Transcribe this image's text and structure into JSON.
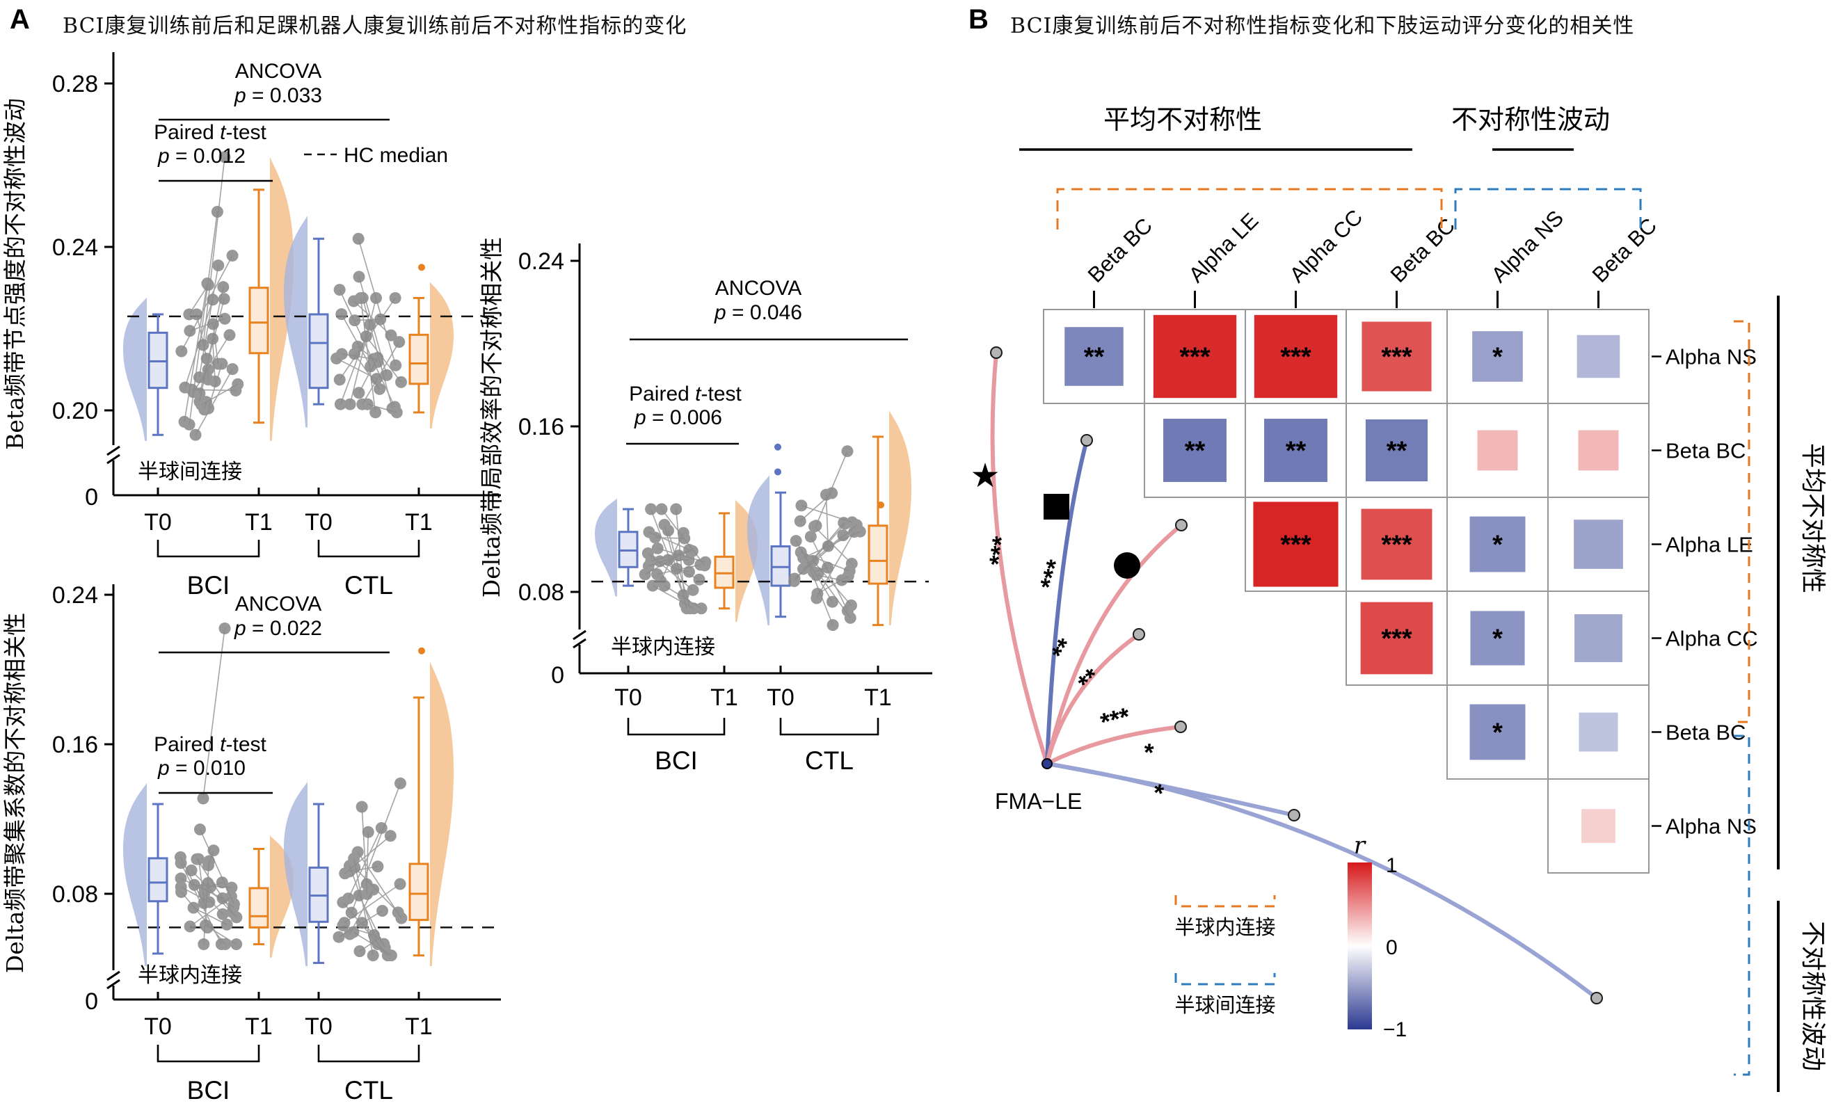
{
  "panels": {
    "a": {
      "tag": "A",
      "title": "BCI康复训练前后和足踝机器人康复训练前后不对称性指标的变化"
    },
    "b": {
      "tag": "B",
      "title": "BCI康复训练前后不对称性指标变化和下肢运动评分变化的相关性"
    }
  },
  "colors": {
    "series": {
      "blue": {
        "main": "#5b74c4",
        "fill": "#e2e6f5",
        "violin": "#a9b6de"
      },
      "orange": {
        "main": "#e8821f",
        "fill": "#fcead8",
        "violin": "#f3bd85"
      }
    },
    "dot": "#8a8a8a",
    "pair_line": "#9a9a9a",
    "intra_bracket": "#e87820",
    "inter_bracket": "#2f7bbf",
    "corr_positive": "#d61c1c",
    "corr_negative": "#29388f",
    "muted_label": "#7f7f7f"
  },
  "chart_data": [
    {
      "id": "beta_ns_fluct",
      "type": "raincloud",
      "ylabel": "Beta频带节点强度的不对称性波动",
      "region_label": "半球间连接",
      "y_ticks": [
        {
          "v": 0.2,
          "label": "0.20"
        },
        {
          "v": 0.24,
          "label": "0.24"
        },
        {
          "v": 0.28,
          "label": "0.28"
        }
      ],
      "zero_label": "0",
      "hc_median": 0.223,
      "legend": {
        "label": "HC median"
      },
      "stats": {
        "ancova": "ANCOVA",
        "ancova_p": "0.033",
        "paired": "Paired t-test",
        "paired_p": "0.012"
      },
      "x_tick_labels": [
        "T0",
        "T1",
        "T0",
        "T1"
      ],
      "group_brackets": [
        "BCI",
        "CTL"
      ],
      "n_pairs": 19,
      "groups": [
        {
          "label": "T0",
          "series": "blue",
          "box": {
            "lo": 0.194,
            "q1": 0.2055,
            "med": 0.212,
            "q3": 0.219,
            "hi": 0.2235
          },
          "outliers": []
        },
        {
          "label": "T1",
          "series": "orange",
          "box": {
            "lo": 0.197,
            "q1": 0.214,
            "med": 0.2215,
            "q3": 0.23,
            "hi": 0.254
          },
          "outliers": []
        },
        {
          "label": "T0",
          "series": "blue",
          "box": {
            "lo": 0.2015,
            "q1": 0.2055,
            "med": 0.2165,
            "q3": 0.2235,
            "hi": 0.242
          },
          "outliers": []
        },
        {
          "label": "T1",
          "series": "orange",
          "box": {
            "lo": 0.1995,
            "q1": 0.2065,
            "med": 0.2115,
            "q3": 0.2185,
            "hi": 0.2275
          },
          "outliers": [
            0.235
          ]
        }
      ],
      "high_pairs": [
        {
          "pair": 0,
          "t0": 0.216,
          "t1": 0.262
        }
      ]
    },
    {
      "id": "delta_le_corr",
      "type": "raincloud",
      "ylabel": "Delta频带局部效率的不对称相关性",
      "region_label": "半球内连接",
      "y_ticks": [
        {
          "v": 0.08,
          "label": "0.08"
        },
        {
          "v": 0.16,
          "label": "0.16"
        },
        {
          "v": 0.24,
          "label": "0.24"
        }
      ],
      "zero_label": "0",
      "hc_median": 0.085,
      "stats": {
        "ancova": "ANCOVA",
        "ancova_p": "0.046",
        "paired": "Paired t-test",
        "paired_p": "0.006"
      },
      "x_tick_labels": [
        "T0",
        "T1",
        "T0",
        "T1"
      ],
      "group_brackets": [
        "BCI",
        "CTL"
      ],
      "n_pairs": 19,
      "groups": [
        {
          "label": "T0",
          "series": "blue",
          "box": {
            "lo": 0.083,
            "q1": 0.092,
            "med": 0.1,
            "q3": 0.109,
            "hi": 0.12
          },
          "outliers": []
        },
        {
          "label": "T1",
          "series": "orange",
          "box": {
            "lo": 0.072,
            "q1": 0.082,
            "med": 0.089,
            "q3": 0.097,
            "hi": 0.118
          },
          "outliers": []
        },
        {
          "label": "T0",
          "series": "blue",
          "box": {
            "lo": 0.068,
            "q1": 0.083,
            "med": 0.092,
            "q3": 0.102,
            "hi": 0.128
          },
          "outliers": [
            0.15,
            0.138
          ]
        },
        {
          "label": "T1",
          "series": "orange",
          "box": {
            "lo": 0.064,
            "q1": 0.084,
            "med": 0.095,
            "q3": 0.112,
            "hi": 0.155
          },
          "outliers": [
            0.122
          ]
        }
      ],
      "high_pairs": [
        {
          "pair": 1,
          "t0": 0.112,
          "t1": 0.148
        }
      ]
    },
    {
      "id": "delta_cc_corr",
      "type": "raincloud",
      "ylabel": "Delta频带聚集系数的不对称相关性",
      "region_label": "半球内连接",
      "y_ticks": [
        {
          "v": 0.08,
          "label": "0.08"
        },
        {
          "v": 0.16,
          "label": "0.16"
        },
        {
          "v": 0.24,
          "label": "0.24"
        }
      ],
      "zero_label": "0",
      "hc_median": 0.062,
      "stats": {
        "ancova": "ANCOVA",
        "ancova_p": "0.022",
        "paired": "Paired t-test",
        "paired_p": "0.010"
      },
      "x_tick_labels": [
        "T0",
        "T1",
        "T0",
        "T1"
      ],
      "group_brackets": [
        "BCI",
        "CTL"
      ],
      "n_pairs": 19,
      "groups": [
        {
          "label": "T0",
          "series": "blue",
          "box": {
            "lo": 0.048,
            "q1": 0.076,
            "med": 0.086,
            "q3": 0.099,
            "hi": 0.128
          },
          "outliers": []
        },
        {
          "label": "T1",
          "series": "orange",
          "box": {
            "lo": 0.053,
            "q1": 0.062,
            "med": 0.068,
            "q3": 0.083,
            "hi": 0.104
          },
          "outliers": []
        },
        {
          "label": "T0",
          "series": "blue",
          "box": {
            "lo": 0.043,
            "q1": 0.065,
            "med": 0.079,
            "q3": 0.094,
            "hi": 0.128
          },
          "outliers": []
        },
        {
          "label": "T1",
          "series": "orange",
          "box": {
            "lo": 0.047,
            "q1": 0.066,
            "med": 0.08,
            "q3": 0.096,
            "hi": 0.185
          },
          "outliers": [
            0.21
          ]
        }
      ],
      "high_pairs": [
        {
          "pair": 0,
          "t0": 0.131,
          "t1": 0.222
        }
      ]
    },
    {
      "id": "fma_corr_network",
      "type": "correlation-matrix-network",
      "top_headers": [
        {
          "label": "平均不对称性",
          "group": "mean"
        },
        {
          "label": "不对称性波动",
          "group": "fluct"
        }
      ],
      "side_headers": [
        {
          "label": "平均不对称性",
          "group": "mean"
        },
        {
          "label": "不对称性波动",
          "group": "fluct"
        }
      ],
      "cols": [
        {
          "label": "Beta BC",
          "muted": false
        },
        {
          "label": "Alpha LE",
          "muted": false
        },
        {
          "label": "Alpha CC",
          "muted": false
        },
        {
          "label": "Beta BC",
          "muted": false
        },
        {
          "label": "Alpha NS",
          "muted": true
        },
        {
          "label": "Beta BC",
          "muted": true
        }
      ],
      "rows": [
        {
          "label": "Alpha NS",
          "muted": false
        },
        {
          "label": "Beta BC",
          "muted": false
        },
        {
          "label": "Alpha LE",
          "muted": false
        },
        {
          "label": "Alpha CC",
          "muted": false
        },
        {
          "label": "Beta BC",
          "muted": false
        },
        {
          "label": "Alpha NS",
          "muted": true
        }
      ],
      "cells": [
        {
          "r": 0,
          "c": 0,
          "v": -0.55,
          "s": "**"
        },
        {
          "r": 0,
          "c": 1,
          "v": 0.93,
          "s": "***"
        },
        {
          "r": 0,
          "c": 2,
          "v": 0.93,
          "s": "***"
        },
        {
          "r": 0,
          "c": 3,
          "v": 0.72,
          "s": "***"
        },
        {
          "r": 0,
          "c": 4,
          "v": -0.42,
          "s": "*"
        },
        {
          "r": 0,
          "c": 5,
          "v": -0.3,
          "s": ""
        },
        {
          "r": 1,
          "c": 1,
          "v": -0.62,
          "s": "**"
        },
        {
          "r": 1,
          "c": 2,
          "v": -0.62,
          "s": "**"
        },
        {
          "r": 1,
          "c": 3,
          "v": -0.6,
          "s": "**"
        },
        {
          "r": 1,
          "c": 4,
          "v": 0.26,
          "s": ""
        },
        {
          "r": 1,
          "c": 5,
          "v": 0.26,
          "s": ""
        },
        {
          "r": 2,
          "c": 2,
          "v": 0.96,
          "s": "***"
        },
        {
          "r": 2,
          "c": 3,
          "v": 0.74,
          "s": "***"
        },
        {
          "r": 2,
          "c": 4,
          "v": -0.5,
          "s": "*"
        },
        {
          "r": 2,
          "c": 5,
          "v": -0.4,
          "s": ""
        },
        {
          "r": 3,
          "c": 3,
          "v": 0.76,
          "s": "***"
        },
        {
          "r": 3,
          "c": 4,
          "v": -0.48,
          "s": "*"
        },
        {
          "r": 3,
          "c": 5,
          "v": -0.38,
          "s": ""
        },
        {
          "r": 4,
          "c": 4,
          "v": -0.5,
          "s": "*"
        },
        {
          "r": 4,
          "c": 5,
          "v": -0.24,
          "s": ""
        },
        {
          "r": 5,
          "c": 5,
          "v": 0.16,
          "s": ""
        }
      ],
      "hub_label": "FMA−LE",
      "edges": [
        {
          "type": "intra",
          "sig": "***",
          "color": "#e8999f"
        },
        {
          "type": "inter",
          "sig": "***",
          "color": "#6474b8"
        },
        {
          "type": "intra",
          "sig": "**",
          "color": "#e8999f"
        },
        {
          "type": "intra",
          "sig": "**",
          "color": "#e8999f"
        },
        {
          "type": "intra",
          "sig": "***",
          "color": "#e8999f"
        },
        {
          "type": "inter",
          "sig": "*",
          "color": "#9aa4d4"
        },
        {
          "type": "inter",
          "sig": "*",
          "color": "#9aa4d4"
        }
      ],
      "symbols": [
        {
          "shape": "star"
        },
        {
          "shape": "square"
        },
        {
          "shape": "circle"
        }
      ],
      "colorbar": {
        "label": "r",
        "tick_labels": [
          "1",
          "0",
          "−1"
        ],
        "top": "#d7191c",
        "mid": "#ffffff",
        "bottom": "#2b3990"
      },
      "legend": [
        {
          "label": "半球内连接",
          "type": "intra"
        },
        {
          "label": "半球间连接",
          "type": "inter"
        }
      ]
    }
  ]
}
